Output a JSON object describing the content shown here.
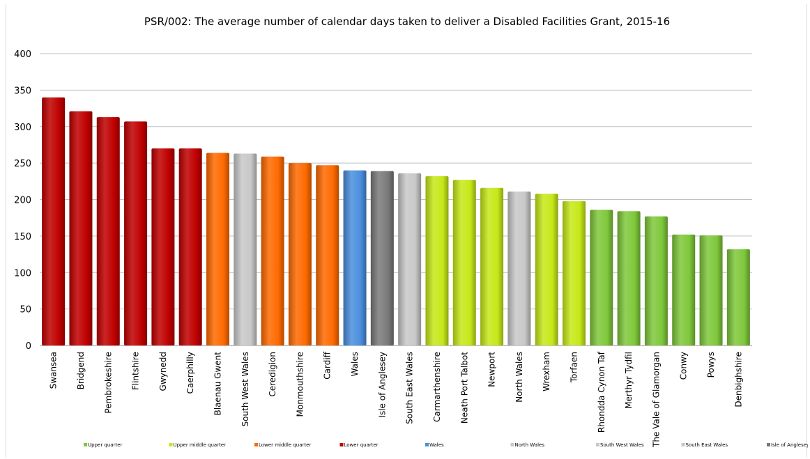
{
  "chart_data": {
    "type": "bar",
    "title": "PSR/002: The average number of calendar days taken to deliver a Disabled Facilities Grant, 2015-16",
    "xlabel": "",
    "ylabel": "",
    "ylim": [
      0,
      400
    ],
    "yticks": [
      "0",
      "50",
      "100",
      "150",
      "200",
      "250",
      "300",
      "350",
      "400"
    ],
    "grid": true,
    "legend_position": "bottom",
    "categories": [
      "Swansea",
      "Bridgend",
      "Pembrokeshire",
      "Flintshire",
      "Gwynedd",
      "Caerphilly",
      "Blaenau Gwent",
      "South West Wales",
      "Ceredigion",
      "Monmouthshire",
      "Cardiff",
      "Wales",
      "Isle of Anglesey",
      "South East Wales",
      "Carmarthenshire",
      "Neath Port Talbot",
      "Newport",
      "North Wales",
      "Wrexham",
      "Torfaen",
      "Rhondda Cynon Taf",
      "Merthyr Tydfil",
      "The Vale of Glamorgan",
      "Conwy",
      "Powys",
      "Denbighshire"
    ],
    "values": [
      340,
      321,
      313,
      307,
      270,
      270,
      264,
      263,
      259,
      250,
      247,
      240,
      239,
      236,
      232,
      227,
      216,
      211,
      208,
      198,
      186,
      184,
      177,
      152,
      151,
      132
    ],
    "groups": [
      "Lower quarter",
      "Lower quarter",
      "Lower quarter",
      "Lower quarter",
      "Lower quarter",
      "Lower quarter",
      "Lower middle quarter",
      "South West Wales",
      "Lower middle quarter",
      "Lower middle quarter",
      "Lower middle quarter",
      "Wales",
      "Isle of Anglesey",
      "South East Wales",
      "Upper middle quarter",
      "Upper middle quarter",
      "Upper middle quarter",
      "North Wales",
      "Upper middle quarter",
      "Upper middle quarter",
      "Upper quarter",
      "Upper quarter",
      "Upper quarter",
      "Upper quarter",
      "Upper quarter",
      "Upper quarter"
    ],
    "legend": [
      {
        "name": "Upper quarter",
        "color": "#7fc83b"
      },
      {
        "name": "Upper middle quarter",
        "color": "#c6e818"
      },
      {
        "name": "Lower middle quarter",
        "color": "#ff6a00"
      },
      {
        "name": "Lower quarter",
        "color": "#c00000"
      },
      {
        "name": "Wales",
        "color": "#4a8fde"
      },
      {
        "name": "North Wales",
        "color": "#c8c8c8"
      },
      {
        "name": "South West Wales",
        "color": "#c8c8c8"
      },
      {
        "name": "South East Wales",
        "color": "#c8c8c8"
      },
      {
        "name": "Isle of Anglesey",
        "color": "#7a7a7a"
      }
    ]
  }
}
